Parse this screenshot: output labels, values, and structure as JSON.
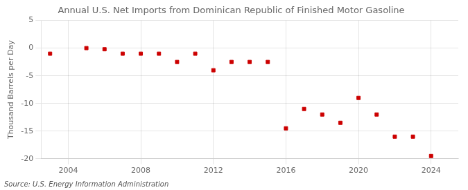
{
  "chart_data": {
    "type": "scatter",
    "title": "Annual U.S. Net Imports from Dominican Republic of Finished Motor Gasoline",
    "ylabel": "Thousand Barrels per Day",
    "annotations": [
      "Source: U.S. Energy Information Administration"
    ],
    "x": [
      2003,
      2005,
      2006,
      2007,
      2008,
      2009,
      2010,
      2011,
      2012,
      2013,
      2014,
      2015,
      2016,
      2017,
      2018,
      2019,
      2020,
      2021,
      2022,
      2023,
      2024
    ],
    "values": [
      -1.0,
      0.0,
      -0.2,
      -1.0,
      -1.0,
      -1.0,
      -2.5,
      -1.0,
      -4.0,
      -2.5,
      -2.5,
      -2.5,
      -14.5,
      -11.0,
      -12.0,
      -13.5,
      -9.0,
      -12.0,
      -16.0,
      -16.0,
      -19.5
    ],
    "color": "#cc0000",
    "marker": "square",
    "xlim": [
      2002.5,
      2025.5
    ],
    "ylim": [
      -20,
      5
    ],
    "xticks": [
      2004,
      2008,
      2012,
      2016,
      2020,
      2024
    ],
    "yticks": [
      5,
      0,
      -5,
      -10,
      -15,
      -20
    ],
    "grid": true
  }
}
